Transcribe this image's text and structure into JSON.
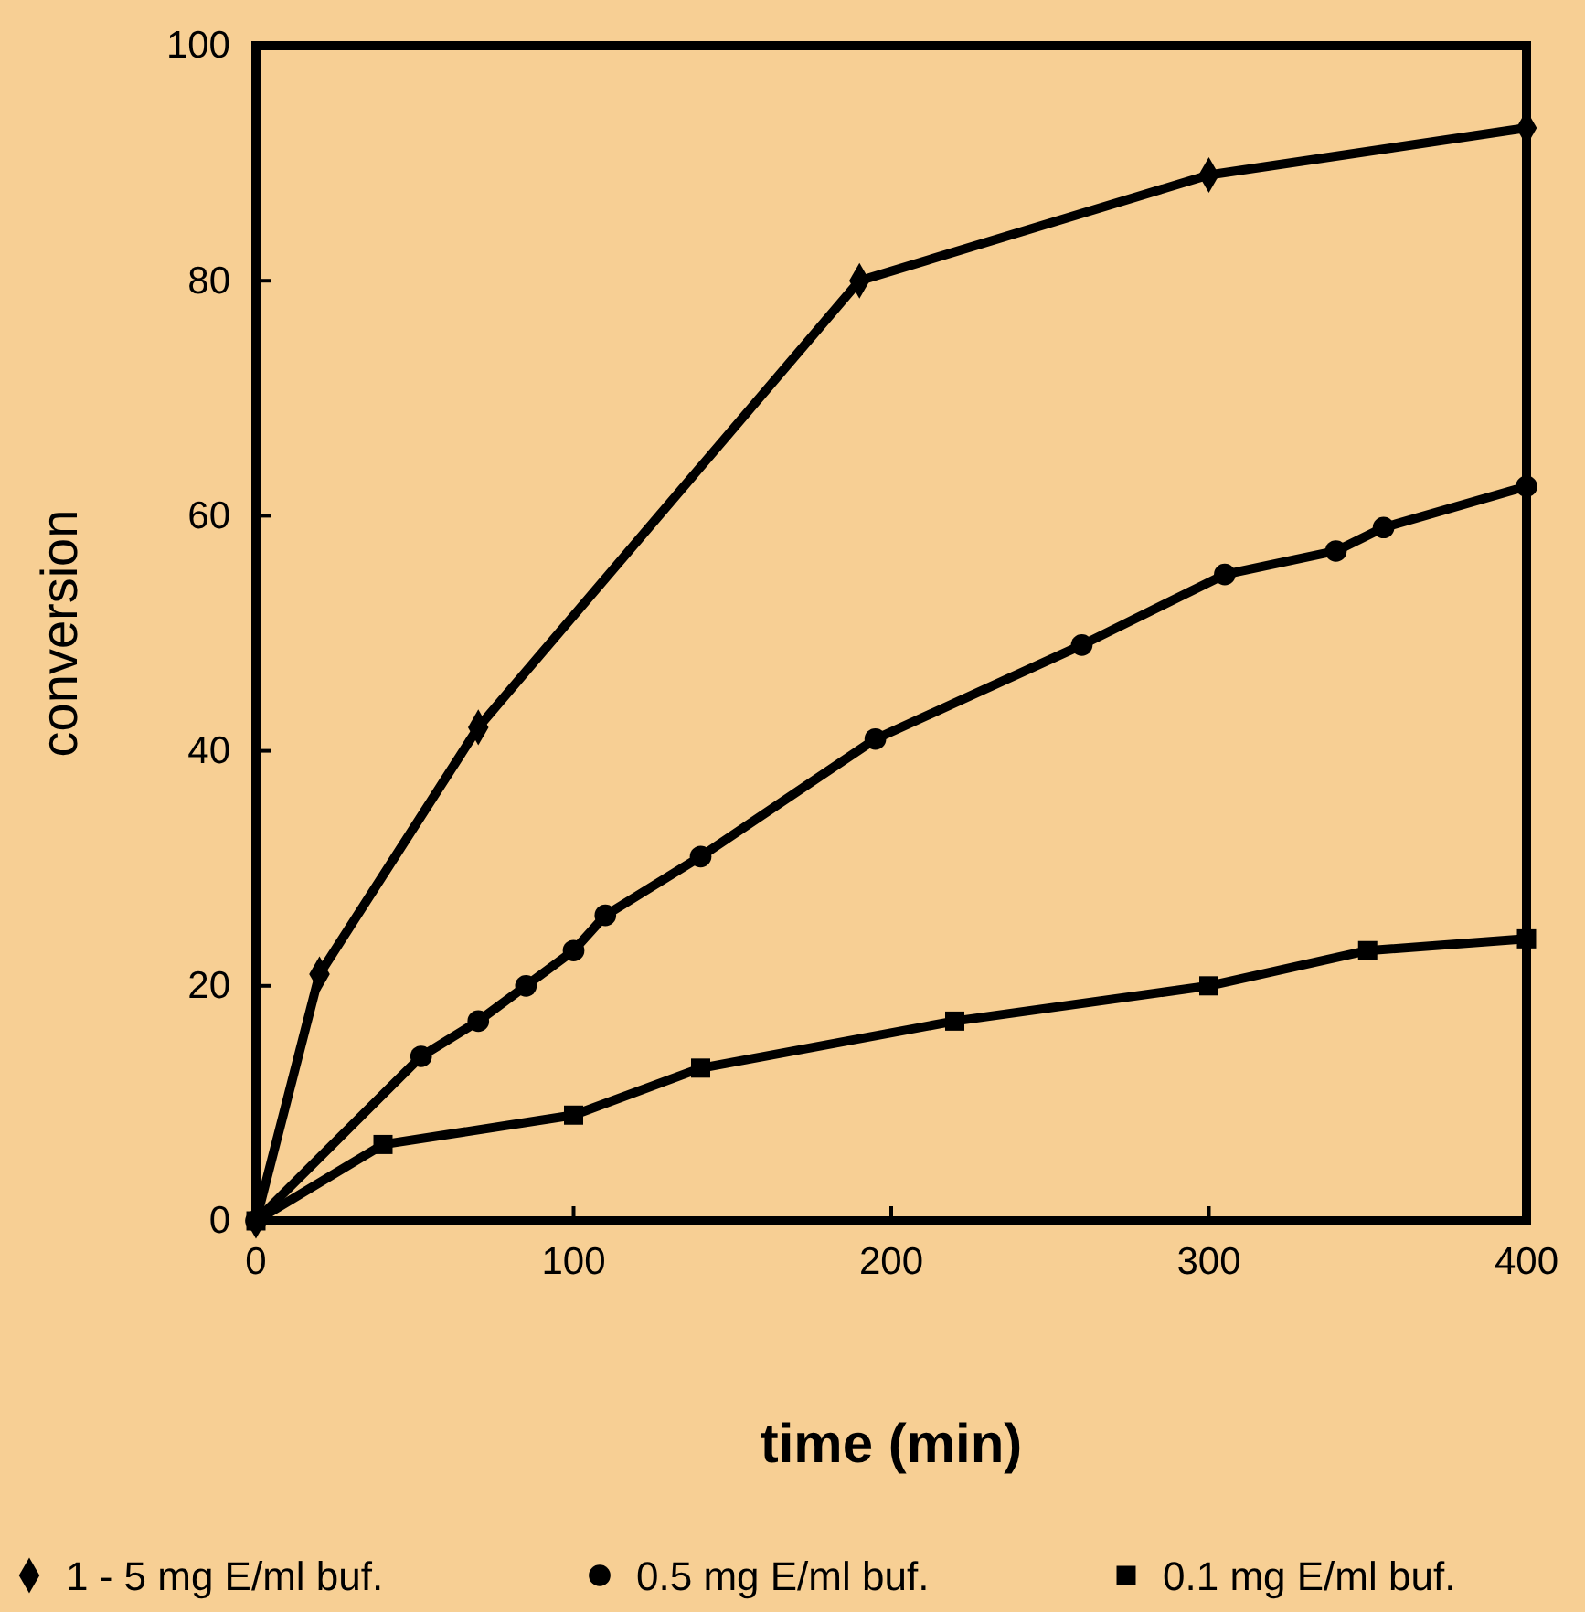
{
  "chart_data": {
    "type": "line",
    "xlabel": "time (min)",
    "ylabel": "conversion",
    "xlim": [
      0,
      400
    ],
    "ylim": [
      0,
      100
    ],
    "xticks": [
      0,
      100,
      200,
      300,
      400
    ],
    "yticks": [
      0,
      20,
      40,
      60,
      80,
      100
    ],
    "grid": false,
    "legend": "bottom",
    "line_style": "solid",
    "series": [
      {
        "name": "1 - 5 mg E/ml buf.",
        "color": "#000000",
        "marker": "diamond",
        "x": [
          0,
          20,
          70,
          190,
          300,
          400
        ],
        "values": [
          0,
          21,
          42,
          80,
          89,
          93
        ]
      },
      {
        "name": "0.5 mg E/ml buf.",
        "color": "#000000",
        "marker": "circle",
        "x": [
          0,
          52,
          70,
          85,
          100,
          110,
          140,
          195,
          260,
          305,
          340,
          355,
          400
        ],
        "values": [
          0,
          14,
          17,
          20,
          23,
          26,
          31,
          41,
          49,
          55,
          57,
          59,
          62.5
        ]
      },
      {
        "name": "0.1 mg E/ml buf.",
        "color": "#000000",
        "marker": "square",
        "x": [
          0,
          40,
          100,
          140,
          220,
          300,
          350,
          400
        ],
        "values": [
          0,
          6.5,
          9,
          13,
          17,
          20,
          23,
          24
        ]
      }
    ]
  }
}
